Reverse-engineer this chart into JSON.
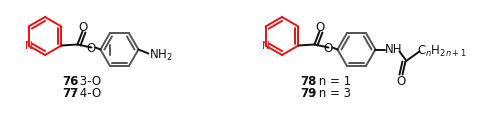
{
  "background_color": "#ffffff",
  "fig_width": 5.0,
  "fig_height": 1.16,
  "dpi": 100,
  "label_76": "76",
  "label_77": "77",
  "label_78": "78",
  "label_79": "79",
  "text_76": ": 3-O",
  "text_77": ": 4-O",
  "text_78": ": n = 1",
  "text_79": ": n = 3",
  "red_color": "#ee1111",
  "dark_color": "#111111",
  "gray_color": "#555555",
  "line_width": 1.4
}
